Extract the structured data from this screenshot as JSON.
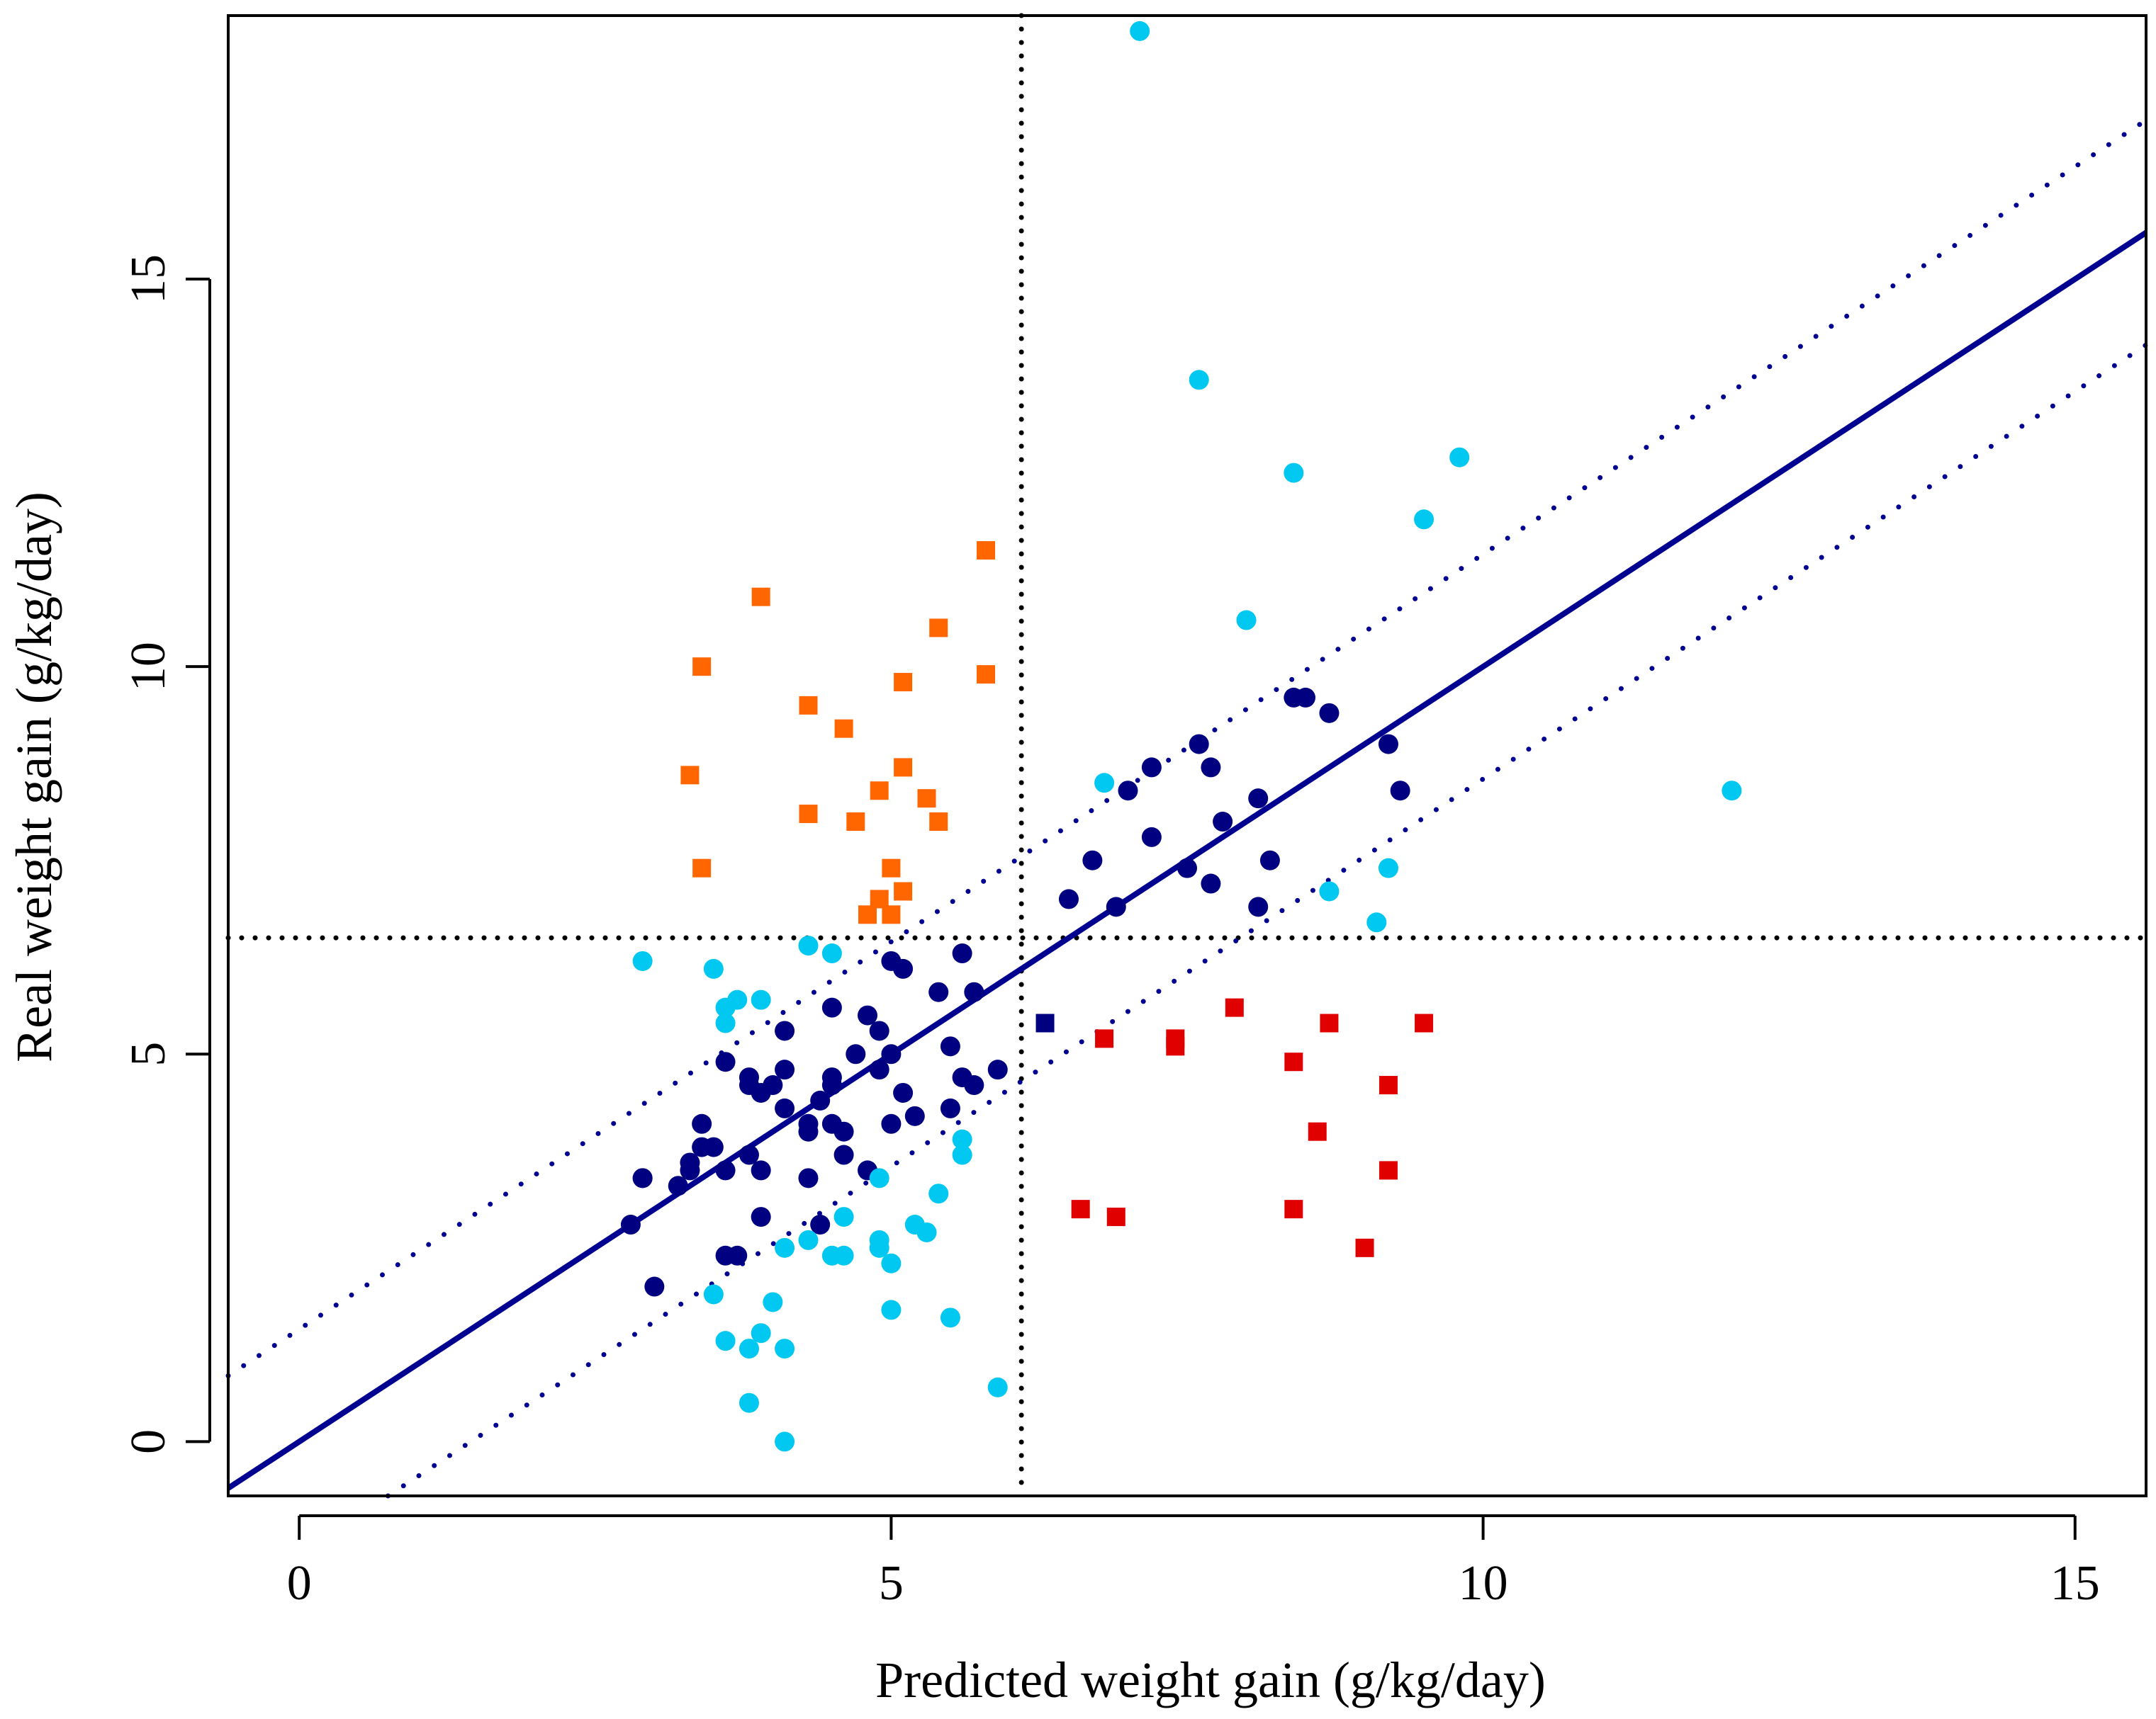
{
  "chart_data": {
    "type": "scatter",
    "title": "",
    "xlabel": "Predicted weight gain (g/kg/day)",
    "ylabel": "Real weight gain (g/kg/day)",
    "xlim": [
      -0.6,
      15.6
    ],
    "ylim": [
      -0.7,
      18.4
    ],
    "xticks": [
      0,
      5,
      10,
      15
    ],
    "xtick_labels": [
      "0",
      "5",
      "10",
      "15"
    ],
    "yticks": [
      0,
      5,
      10,
      15
    ],
    "ytick_labels": [
      "0",
      "5",
      "10",
      "15"
    ],
    "grid": false,
    "legend": "none",
    "reference_lines": {
      "vertical_x": 6.1,
      "horizontal_y": 6.5,
      "fit_line": {
        "slope": 1.0,
        "intercept": 0.0
      },
      "upper_band": {
        "slope": 1.0,
        "intercept": 1.45
      },
      "lower_band": {
        "slope": 1.0,
        "intercept": -1.45
      }
    },
    "colors": {
      "navy": "#000080",
      "cyan": "#00c8f0",
      "orange": "#ff6600",
      "red": "#e00000",
      "fit": "#000090"
    },
    "series": [
      {
        "name": "navy points",
        "color": "#000080",
        "marker": "circle",
        "x": [
          2.8,
          2.9,
          3.3,
          3.0,
          3.2,
          3.4,
          3.4,
          3.6,
          3.3,
          3.6,
          3.6,
          3.7,
          3.9,
          3.8,
          3.8,
          3.9,
          3.9,
          4.0,
          4.1,
          4.1,
          4.1,
          4.3,
          4.3,
          4.4,
          4.4,
          4.5,
          4.5,
          4.5,
          4.5,
          4.6,
          4.6,
          4.7,
          4.8,
          4.8,
          4.9,
          4.9,
          5.0,
          5.0,
          5.0,
          5.1,
          5.1,
          5.2,
          5.4,
          5.5,
          5.5,
          5.6,
          5.6,
          5.7,
          5.7,
          5.9,
          6.5,
          6.7,
          6.9,
          7.0,
          7.2,
          7.2,
          7.5,
          7.6,
          7.7,
          7.7,
          7.8,
          8.1,
          8.1,
          8.2,
          8.4,
          8.5,
          8.7,
          9.2,
          9.3,
          2.9,
          3.8,
          3.5,
          4.3
        ],
        "y": [
          2.8,
          3.4,
          3.6,
          2.0,
          3.3,
          3.8,
          4.1,
          3.5,
          3.5,
          2.4,
          4.9,
          2.4,
          2.9,
          4.6,
          3.7,
          4.5,
          3.5,
          4.6,
          4.8,
          4.3,
          5.3,
          3.4,
          4.1,
          2.8,
          4.4,
          4.7,
          4.6,
          4.1,
          5.6,
          4.0,
          3.7,
          5.0,
          5.5,
          3.5,
          5.3,
          4.8,
          5.0,
          6.2,
          4.1,
          4.5,
          6.1,
          4.2,
          5.8,
          4.3,
          5.1,
          4.7,
          6.3,
          4.6,
          5.8,
          4.8,
          7.0,
          7.5,
          6.9,
          8.4,
          8.7,
          7.8,
          7.4,
          9.0,
          8.7,
          7.2,
          8.0,
          6.9,
          8.3,
          7.5,
          9.6,
          9.6,
          9.4,
          9.0,
          8.4,
          3.4,
          4.7,
          3.8,
          4.0
        ]
      },
      {
        "name": "cyan points",
        "color": "#00c8f0",
        "marker": "circle",
        "x": [
          7.1,
          7.6,
          8.4,
          9.8,
          9.5,
          8.0,
          12.1,
          6.8,
          8.7,
          9.2,
          9.1,
          2.9,
          3.5,
          3.6,
          3.7,
          3.6,
          3.9,
          4.3,
          4.5,
          3.5,
          3.6,
          3.8,
          3.9,
          3.8,
          4.1,
          4.0,
          4.1,
          4.1,
          4.3,
          4.5,
          4.6,
          4.6,
          4.9,
          4.9,
          4.9,
          5.0,
          5.0,
          5.2,
          5.3,
          5.4,
          5.5,
          5.6,
          5.6,
          5.9
        ],
        "y": [
          18.2,
          13.7,
          12.5,
          12.7,
          11.9,
          10.6,
          8.4,
          8.5,
          7.1,
          7.4,
          6.7,
          6.2,
          6.1,
          5.6,
          5.7,
          5.4,
          5.7,
          6.4,
          6.3,
          1.9,
          1.3,
          1.2,
          1.4,
          0.5,
          0.0,
          1.8,
          1.2,
          2.5,
          2.6,
          2.4,
          2.9,
          2.4,
          2.5,
          2.6,
          3.4,
          2.3,
          1.7,
          2.8,
          2.7,
          3.2,
          1.6,
          3.9,
          3.7,
          0.7
        ]
      },
      {
        "name": "orange squares",
        "color": "#ff6600",
        "marker": "square",
        "x": [
          5.8,
          3.9,
          5.4,
          3.4,
          5.1,
          5.8,
          4.3,
          4.6,
          3.3,
          5.1,
          4.3,
          4.9,
          5.3,
          4.7,
          5.4,
          3.4,
          5.0,
          5.1,
          4.9,
          4.8,
          5.0
        ],
        "y": [
          11.5,
          10.9,
          10.5,
          10.0,
          9.8,
          9.9,
          9.5,
          9.2,
          8.6,
          8.7,
          8.1,
          8.4,
          8.3,
          8.0,
          8.0,
          7.4,
          7.4,
          7.1,
          7.0,
          6.8,
          6.8
        ]
      },
      {
        "name": "red squares",
        "color": "#e00000",
        "marker": "square",
        "x": [
          6.8,
          7.4,
          7.4,
          7.9,
          8.4,
          8.7,
          9.5,
          8.6,
          9.2,
          9.2,
          6.6,
          6.9,
          8.4,
          9.0
        ],
        "y": [
          5.2,
          5.2,
          5.1,
          5.6,
          4.9,
          5.4,
          5.4,
          4.0,
          4.6,
          3.5,
          3.0,
          2.9,
          3.0,
          2.5
        ]
      },
      {
        "name": "navy square",
        "color": "#000080",
        "marker": "square",
        "x": [
          6.3
        ],
        "y": [
          5.4
        ]
      }
    ]
  }
}
